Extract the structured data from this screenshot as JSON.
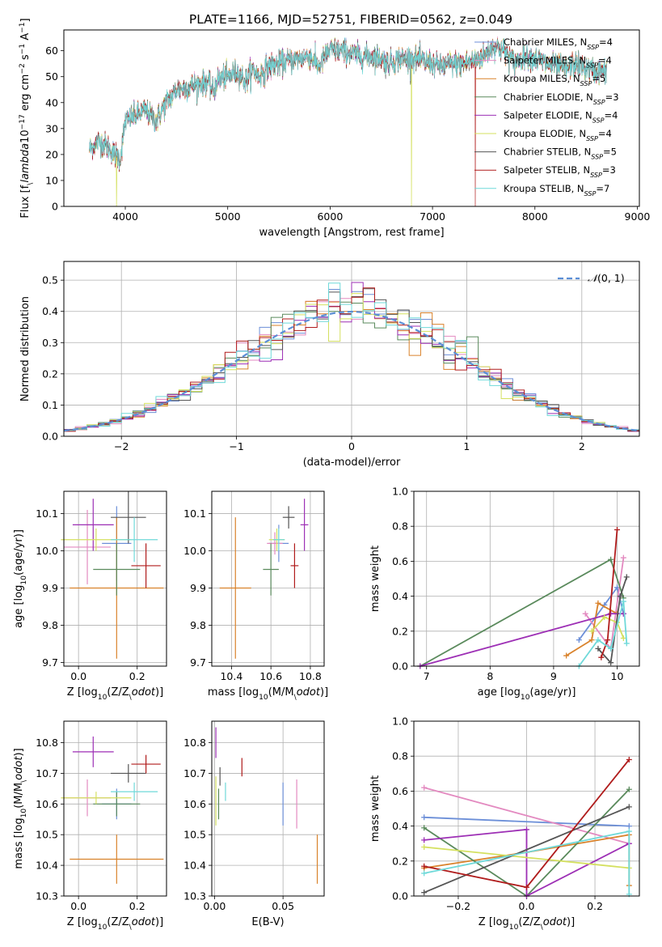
{
  "title": "PLATE=1166, MJD=52751, FIBERID=0562, z=0.049",
  "colors": {
    "Chabrier MILES": "#6c8fd8",
    "Salpeter MILES": "#e38ac0",
    "Kroupa MILES": "#d9822b",
    "Chabrier ELODIE": "#5a8a5c",
    "Salpeter ELODIE": "#9d2fb5",
    "Kroupa ELODIE": "#d4e05f",
    "Chabrier STELIB": "#555555",
    "Salpeter STELIB": "#b01c1c",
    "Kroupa STELIB": "#6fd9d9",
    "gauss": "#5b8ed6"
  },
  "chart_data": [
    {
      "id": "spectrum",
      "type": "line",
      "xlabel": "wavelength [Angstrom, rest frame]",
      "ylabel": "Flux [f$_\\lambda$10$^{-17}$ erg cm$^{-2}$ s$^{-1}$ A$^{-1}$]",
      "xlim": [
        3400,
        9020
      ],
      "ylim": [
        0,
        68
      ],
      "xticks": [
        "4000",
        "5000",
        "6000",
        "7000",
        "8000",
        "9000"
      ],
      "yticks": [
        "0",
        "10",
        "20",
        "30",
        "40",
        "50",
        "60"
      ],
      "legend": [
        {
          "name": "Chabrier MILES",
          "nssp": "4"
        },
        {
          "name": "Salpeter MILES",
          "nssp": "4"
        },
        {
          "name": "Kroupa MILES",
          "nssp": "5"
        },
        {
          "name": "Chabrier ELODIE",
          "nssp": "3"
        },
        {
          "name": "Salpeter ELODIE",
          "nssp": "4"
        },
        {
          "name": "Kroupa ELODIE",
          "nssp": "4"
        },
        {
          "name": "Chabrier STELIB",
          "nssp": "5"
        },
        {
          "name": "Salpeter STELIB",
          "nssp": "3"
        },
        {
          "name": "Kroupa STELIB",
          "nssp": "7"
        }
      ],
      "continuum": {
        "x": [
          3650,
          3700,
          3750,
          3800,
          3850,
          3900,
          3950,
          4000,
          4100,
          4200,
          4300,
          4400,
          4500,
          4600,
          4700,
          4800,
          4860,
          4900,
          5000,
          5100,
          5175,
          5250,
          5300,
          5400,
          5500,
          5600,
          5700,
          5800,
          5890,
          5950,
          6000,
          6100,
          6200,
          6300,
          6400,
          6500,
          6563,
          6600,
          6700,
          6800,
          6900,
          7000,
          7100,
          7200,
          7300,
          7400,
          7500,
          7600,
          7700,
          7800,
          7900,
          8000,
          8100,
          8200,
          8300,
          8400,
          8500,
          8600,
          8700
        ],
        "y": [
          22,
          24,
          25,
          24,
          22,
          20,
          18,
          33,
          35,
          37,
          33,
          40,
          45,
          46,
          47,
          48,
          44,
          49,
          50,
          52,
          48,
          53,
          50,
          54,
          55,
          56,
          57,
          58,
          54,
          58,
          60,
          60,
          59,
          58,
          58,
          57,
          55,
          56,
          57,
          57,
          56,
          55,
          54,
          55,
          55,
          56,
          58,
          62,
          60,
          55,
          58,
          57,
          55,
          54,
          53,
          55,
          53,
          52,
          52
        ]
      },
      "dips": [
        {
          "x": 3915,
          "y": 0,
          "series": "Kroupa ELODIE"
        },
        {
          "x": 6795,
          "y": 0,
          "series": "Kroupa ELODIE"
        },
        {
          "x": 7418,
          "y": 0,
          "series": "Salpeter STELIB"
        }
      ]
    },
    {
      "id": "residuals",
      "type": "histogram",
      "xlabel": "(data-model)/error",
      "ylabel": "Normed distribution",
      "xlim": [
        -2.5,
        2.5
      ],
      "ylim": [
        0,
        0.56
      ],
      "xticks": [
        "−2",
        "−1",
        "0",
        "1",
        "2"
      ],
      "yticks": [
        "0.0",
        "0.1",
        "0.2",
        "0.3",
        "0.4",
        "0.5"
      ],
      "legend": "$\\mathcal{N}(0,1)$",
      "bin_width": 0.1,
      "mean_pdf": "normal(0,1)"
    },
    {
      "id": "age_vs_Z",
      "type": "errorbar",
      "xlabel": "Z [log$_{10}$(Z/Z$_\\odot$)]",
      "ylabel": "age  [log$_{10}$(age/yr)]",
      "xlim": [
        -0.05,
        0.3
      ],
      "ylim": [
        9.69,
        10.16
      ],
      "xticks": [
        "0.0",
        "0.2"
      ],
      "yticks": [
        "9.7",
        "9.8",
        "9.9",
        "10.0",
        "10.1"
      ],
      "points": [
        {
          "series": "Chabrier MILES",
          "x": 0.13,
          "xerr": 0.05,
          "y": 10.02,
          "yerr": 0.1
        },
        {
          "series": "Salpeter MILES",
          "x": 0.03,
          "xerr": 0.08,
          "y": 10.01,
          "yerr": 0.1
        },
        {
          "series": "Kroupa MILES",
          "x": 0.13,
          "xerr": 0.16,
          "y": 9.9,
          "yerr": 0.19
        },
        {
          "series": "Chabrier ELODIE",
          "x": 0.13,
          "xerr": 0.08,
          "y": 9.95,
          "yerr": 0.07
        },
        {
          "series": "Salpeter ELODIE",
          "x": 0.05,
          "xerr": 0.07,
          "y": 10.07,
          "yerr": 0.07
        },
        {
          "series": "Kroupa ELODIE",
          "x": 0.06,
          "xerr": 0.12,
          "y": 10.03,
          "yerr": 0.03
        },
        {
          "series": "Chabrier STELIB",
          "x": 0.17,
          "xerr": 0.06,
          "y": 10.09,
          "yerr": 0.07
        },
        {
          "series": "Salpeter STELIB",
          "x": 0.23,
          "xerr": 0.05,
          "y": 9.96,
          "yerr": 0.06
        },
        {
          "series": "Kroupa STELIB",
          "x": 0.19,
          "xerr": 0.08,
          "y": 10.03,
          "yerr": 0.06
        }
      ]
    },
    {
      "id": "age_vs_mass",
      "type": "errorbar",
      "xlabel": "mass [log$_{10}$(M/M$_\\odot$)]",
      "ylabel": "",
      "xlim": [
        10.3,
        10.87
      ],
      "ylim": [
        9.69,
        10.16
      ],
      "xticks": [
        "10.4",
        "10.6",
        "10.8"
      ],
      "yticks": [
        "9.7",
        "9.8",
        "9.9",
        "10.0",
        "10.1"
      ],
      "points": [
        {
          "series": "Chabrier MILES",
          "x": 10.64,
          "xerr": 0.05,
          "y": 10.02,
          "yerr": 0.05
        },
        {
          "series": "Salpeter MILES",
          "x": 10.62,
          "xerr": 0.04,
          "y": 10.02,
          "yerr": 0.03
        },
        {
          "series": "Kroupa MILES",
          "x": 10.42,
          "xerr": 0.08,
          "y": 9.9,
          "yerr": 0.19
        },
        {
          "series": "Chabrier ELODIE",
          "x": 10.6,
          "xerr": 0.04,
          "y": 9.95,
          "yerr": 0.07
        },
        {
          "series": "Salpeter ELODIE",
          "x": 10.77,
          "xerr": 0.02,
          "y": 10.07,
          "yerr": 0.07
        },
        {
          "series": "Kroupa ELODIE",
          "x": 10.63,
          "xerr": 0.04,
          "y": 10.03,
          "yerr": 0.03
        },
        {
          "series": "Chabrier STELIB",
          "x": 10.69,
          "xerr": 0.03,
          "y": 10.09,
          "yerr": 0.03
        },
        {
          "series": "Salpeter STELIB",
          "x": 10.72,
          "xerr": 0.02,
          "y": 9.96,
          "yerr": 0.06
        },
        {
          "series": "Kroupa STELIB",
          "x": 10.64,
          "xerr": 0.03,
          "y": 10.03,
          "yerr": 0.03
        }
      ]
    },
    {
      "id": "weight_vs_age",
      "type": "line",
      "xlabel": "age  [log$_{10}$(age/yr)]",
      "ylabel": "mass weight",
      "xlim": [
        6.8,
        10.35
      ],
      "ylim": [
        0,
        1
      ],
      "xticks": [
        "7",
        "8",
        "9",
        "10"
      ],
      "yticks": [
        "0.0",
        "0.2",
        "0.4",
        "0.6",
        "0.8",
        "1.0"
      ],
      "series": [
        {
          "name": "Chabrier MILES",
          "x": [
            9.4,
            9.8,
            10.0,
            10.1
          ],
          "y": [
            0.15,
            0.35,
            0.45,
            0.3
          ]
        },
        {
          "name": "Salpeter MILES",
          "x": [
            9.5,
            9.9,
            10.1
          ],
          "y": [
            0.3,
            0.1,
            0.62
          ]
        },
        {
          "name": "Kroupa MILES",
          "x": [
            9.2,
            9.6,
            9.7,
            10.0
          ],
          "y": [
            0.06,
            0.15,
            0.36,
            0.3
          ]
        },
        {
          "name": "Chabrier ELODIE",
          "x": [
            6.9,
            9.9,
            10.1
          ],
          "y": [
            0.0,
            0.61,
            0.39
          ]
        },
        {
          "name": "Salpeter ELODIE",
          "x": [
            6.9,
            9.9,
            10.1
          ],
          "y": [
            0.0,
            0.3,
            0.3
          ]
        },
        {
          "name": "Kroupa ELODIE",
          "x": [
            9.6,
            9.8,
            10.0,
            10.1
          ],
          "y": [
            0.2,
            0.28,
            0.25,
            0.16
          ]
        },
        {
          "name": "Chabrier STELIB",
          "x": [
            9.7,
            9.9,
            10.05,
            10.15
          ],
          "y": [
            0.1,
            0.02,
            0.4,
            0.51
          ]
        },
        {
          "name": "Salpeter STELIB",
          "x": [
            9.75,
            9.85,
            10.0
          ],
          "y": [
            0.05,
            0.15,
            0.78
          ]
        },
        {
          "name": "Kroupa STELIB",
          "x": [
            9.4,
            9.7,
            9.9,
            10.1,
            10.15
          ],
          "y": [
            0.0,
            0.15,
            0.1,
            0.37,
            0.13
          ]
        }
      ]
    },
    {
      "id": "mass_vs_Z",
      "type": "errorbar",
      "xlabel": "Z [log$_{10}$(Z/Z$_\\odot$)]",
      "ylabel": "mass [log$_{10}$(M/M$_\\odot$)]",
      "xlim": [
        -0.05,
        0.3
      ],
      "ylim": [
        10.3,
        10.87
      ],
      "xticks": [
        "0.0",
        "0.2"
      ],
      "yticks": [
        "10.3",
        "10.4",
        "10.5",
        "10.6",
        "10.7",
        "10.8"
      ],
      "points": [
        {
          "series": "Chabrier MILES",
          "x": 0.13,
          "xerr": 0.05,
          "y": 10.6,
          "yerr": 0.05
        },
        {
          "series": "Salpeter MILES",
          "x": 0.03,
          "xerr": 0.08,
          "y": 10.62,
          "yerr": 0.06
        },
        {
          "series": "Kroupa MILES",
          "x": 0.13,
          "xerr": 0.16,
          "y": 10.42,
          "yerr": 0.08
        },
        {
          "series": "Chabrier ELODIE",
          "x": 0.13,
          "xerr": 0.08,
          "y": 10.6,
          "yerr": 0.04
        },
        {
          "series": "Salpeter ELODIE",
          "x": 0.05,
          "xerr": 0.07,
          "y": 10.77,
          "yerr": 0.05
        },
        {
          "series": "Kroupa ELODIE",
          "x": 0.06,
          "xerr": 0.12,
          "y": 10.62,
          "yerr": 0.02
        },
        {
          "series": "Chabrier STELIB",
          "x": 0.17,
          "xerr": 0.06,
          "y": 10.7,
          "yerr": 0.03
        },
        {
          "series": "Salpeter STELIB",
          "x": 0.23,
          "xerr": 0.05,
          "y": 10.73,
          "yerr": 0.03
        },
        {
          "series": "Kroupa STELIB",
          "x": 0.19,
          "xerr": 0.08,
          "y": 10.64,
          "yerr": 0.03
        }
      ]
    },
    {
      "id": "mass_vs_ebv",
      "type": "errorbar",
      "xlabel": "E(B-V)",
      "ylabel": "",
      "xlim": [
        -0.002,
        0.08
      ],
      "ylim": [
        10.3,
        10.87
      ],
      "xticks": [
        "0.00",
        "0.05"
      ],
      "yticks": [
        "10.3",
        "10.4",
        "10.5",
        "10.6",
        "10.7",
        "10.8"
      ],
      "points": [
        {
          "series": "Chabrier MILES",
          "x": 0.05,
          "xerr": 0.0,
          "y": 10.6,
          "yerr": 0.07
        },
        {
          "series": "Salpeter MILES",
          "x": 0.06,
          "xerr": 0.0,
          "y": 10.6,
          "yerr": 0.08
        },
        {
          "series": "Kroupa MILES",
          "x": 0.075,
          "xerr": 0.0,
          "y": 10.42,
          "yerr": 0.08
        },
        {
          "series": "Chabrier ELODIE",
          "x": 0.003,
          "xerr": 0.0,
          "y": 10.6,
          "yerr": 0.05
        },
        {
          "series": "Salpeter ELODIE",
          "x": 0.001,
          "xerr": 0.0,
          "y": 10.8,
          "yerr": 0.05
        },
        {
          "series": "Kroupa ELODIE",
          "x": 0.001,
          "xerr": 0.0,
          "y": 10.61,
          "yerr": 0.08
        },
        {
          "series": "Chabrier STELIB",
          "x": 0.004,
          "xerr": 0.0,
          "y": 10.69,
          "yerr": 0.03
        },
        {
          "series": "Salpeter STELIB",
          "x": 0.02,
          "xerr": 0.0,
          "y": 10.72,
          "yerr": 0.03
        },
        {
          "series": "Kroupa STELIB",
          "x": 0.008,
          "xerr": 0.0,
          "y": 10.64,
          "yerr": 0.03
        }
      ]
    },
    {
      "id": "weight_vs_Z",
      "type": "line",
      "xlabel": "Z [log$_{10}$(Z/Z$_\\odot$)]",
      "ylabel": "mass weight",
      "xlim": [
        -0.33,
        0.33
      ],
      "ylim": [
        0,
        1
      ],
      "xticks": [
        "−0.2",
        "0.0",
        "0.2"
      ],
      "yticks": [
        "0.0",
        "0.2",
        "0.4",
        "0.6",
        "0.8",
        "1.0"
      ],
      "series": [
        {
          "name": "Chabrier MILES",
          "x": [
            -0.3,
            0.3
          ],
          "y": [
            0.45,
            0.4
          ]
        },
        {
          "name": "Salpeter MILES",
          "x": [
            -0.3,
            0.3
          ],
          "y": [
            0.62,
            0.3
          ]
        },
        {
          "name": "Kroupa MILES",
          "x": [
            -0.3,
            0.0,
            0.3,
            0.3
          ],
          "y": [
            0.16,
            0.25,
            0.35,
            0.06
          ]
        },
        {
          "name": "Chabrier ELODIE",
          "x": [
            -0.3,
            0.0,
            0.3
          ],
          "y": [
            0.39,
            0.0,
            0.61
          ]
        },
        {
          "name": "Salpeter ELODIE",
          "x": [
            -0.3,
            0.0,
            0.0,
            0.3
          ],
          "y": [
            0.32,
            0.38,
            0.0,
            0.3
          ]
        },
        {
          "name": "Kroupa ELODIE",
          "x": [
            -0.3,
            0.3
          ],
          "y": [
            0.28,
            0.16
          ]
        },
        {
          "name": "Chabrier STELIB",
          "x": [
            -0.3,
            0.3
          ],
          "y": [
            0.02,
            0.51
          ]
        },
        {
          "name": "Salpeter STELIB",
          "x": [
            -0.3,
            0.0,
            0.3
          ],
          "y": [
            0.17,
            0.05,
            0.78
          ]
        },
        {
          "name": "Kroupa STELIB",
          "x": [
            -0.3,
            0.3,
            0.3
          ],
          "y": [
            0.13,
            0.37,
            0.01
          ]
        }
      ]
    }
  ]
}
